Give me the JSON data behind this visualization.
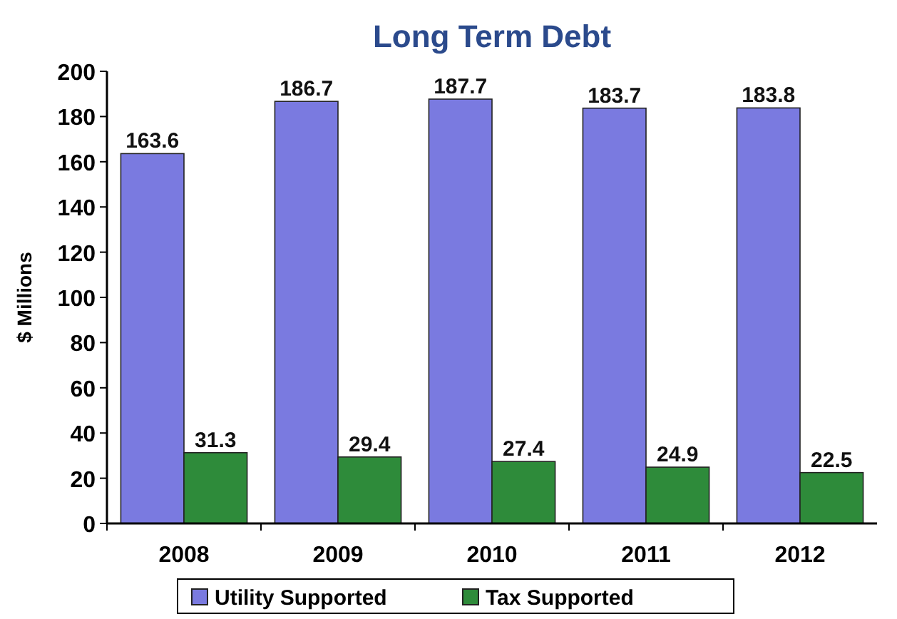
{
  "chart_data": {
    "type": "bar",
    "title": "Long Term Debt",
    "ylabel": "$ Millions",
    "categories": [
      "2008",
      "2009",
      "2010",
      "2011",
      "2012"
    ],
    "series": [
      {
        "name": "Utility Supported",
        "color": "#7a7ae0",
        "values": [
          163.6,
          186.7,
          187.7,
          183.7,
          183.8
        ]
      },
      {
        "name": "Tax Supported",
        "color": "#2e8b3a",
        "values": [
          31.3,
          29.4,
          27.4,
          24.9,
          22.5
        ]
      }
    ],
    "ylim": [
      0,
      200
    ],
    "yticks": [
      0,
      20,
      40,
      60,
      80,
      100,
      120,
      140,
      160,
      180,
      200
    ],
    "data_labels": true,
    "legend": "bottom",
    "grid": false
  }
}
